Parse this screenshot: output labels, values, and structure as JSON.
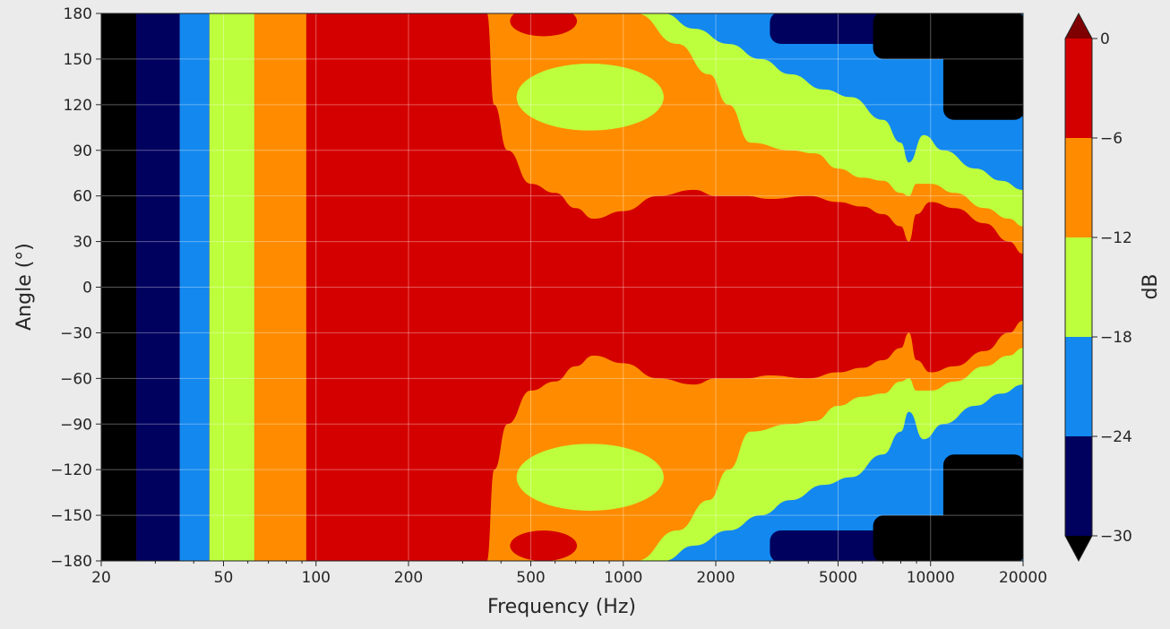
{
  "chart_data": {
    "type": "heatmap",
    "subtype": "filled-contour",
    "title": "",
    "xlabel": "Frequency (Hz)",
    "ylabel": "Angle (°)",
    "x_scale": "log",
    "xlim": [
      20,
      20000
    ],
    "ylim": [
      -180,
      180
    ],
    "x_ticks": [
      20,
      50,
      100,
      200,
      500,
      1000,
      2000,
      5000,
      10000,
      20000
    ],
    "y_ticks": [
      180,
      150,
      120,
      90,
      60,
      30,
      0,
      -30,
      -60,
      -90,
      -120,
      -150,
      -180
    ],
    "y_tick_labels": [
      "180",
      "150",
      "120",
      "90",
      "60",
      "30",
      "0",
      "−30",
      "−60",
      "−90",
      "−120",
      "−150",
      "−180"
    ],
    "grid": true,
    "colorbar": {
      "label": "dB",
      "levels": [
        -30,
        -24,
        -18,
        -12,
        -6,
        0
      ],
      "tick_labels": [
        "0",
        "−6",
        "−12",
        "−18",
        "−24",
        "−30"
      ],
      "extend": "both",
      "band_colors": [
        "#00005e",
        "#1388ef",
        "#bdff3d",
        "#ff8c00",
        "#d40000"
      ],
      "under_color": "#000000",
      "over_color": "#7f0000"
    },
    "low_frequency_bands": [
      {
        "from_hz": 20,
        "to_hz": 26,
        "level": "below -30 dB"
      },
      {
        "from_hz": 26,
        "to_hz": 36,
        "level": "-30 to -24 dB"
      },
      {
        "from_hz": 36,
        "to_hz": 45,
        "level": "-24 to -18 dB"
      },
      {
        "from_hz": 45,
        "to_hz": 63,
        "level": "-18 to -12 dB"
      },
      {
        "from_hz": 63,
        "to_hz": 93,
        "level": "-12 to -6 dB"
      },
      {
        "from_hz": 93,
        "to_hz": 20000,
        "level": "-6 to 0 dB (on-axis)"
      }
    ],
    "contour_boundaries": [
      {
        "level": "-6 dB",
        "points": [
          [
            360,
            180
          ],
          [
            380,
            120
          ],
          [
            420,
            90
          ],
          [
            500,
            68
          ],
          [
            600,
            62
          ],
          [
            700,
            52
          ],
          [
            800,
            45
          ],
          [
            1000,
            50
          ],
          [
            1300,
            60
          ],
          [
            1700,
            64
          ],
          [
            2000,
            60
          ],
          [
            2500,
            60
          ],
          [
            3000,
            58
          ],
          [
            4000,
            60
          ],
          [
            5000,
            56
          ],
          [
            6000,
            53
          ],
          [
            7000,
            48
          ],
          [
            8000,
            40
          ],
          [
            8500,
            30
          ],
          [
            9000,
            48
          ],
          [
            10000,
            56
          ],
          [
            12000,
            52
          ],
          [
            15000,
            42
          ],
          [
            18000,
            30
          ],
          [
            20000,
            22
          ]
        ]
      },
      {
        "level": "-12 dB",
        "points": [
          [
            1100,
            180
          ],
          [
            1500,
            160
          ],
          [
            1900,
            140
          ],
          [
            2200,
            120
          ],
          [
            2600,
            95
          ],
          [
            3500,
            90
          ],
          [
            4200,
            88
          ],
          [
            5000,
            78
          ],
          [
            6000,
            72
          ],
          [
            7000,
            70
          ],
          [
            8000,
            62
          ],
          [
            8500,
            60
          ],
          [
            9000,
            68
          ],
          [
            10000,
            68
          ],
          [
            12000,
            62
          ],
          [
            15000,
            52
          ],
          [
            18000,
            45
          ],
          [
            20000,
            40
          ]
        ]
      },
      {
        "level": "-18 dB",
        "points": [
          [
            1350,
            180
          ],
          [
            1700,
            170
          ],
          [
            2200,
            160
          ],
          [
            2800,
            150
          ],
          [
            3500,
            140
          ],
          [
            4500,
            130
          ],
          [
            5500,
            125
          ],
          [
            7000,
            110
          ],
          [
            8000,
            95
          ],
          [
            8500,
            82
          ],
          [
            9500,
            100
          ],
          [
            11000,
            90
          ],
          [
            14000,
            78
          ],
          [
            17000,
            70
          ],
          [
            20000,
            64
          ]
        ]
      }
    ],
    "islands": [
      {
        "level": "-18 to -12 dB",
        "center": [
          780,
          125
        ],
        "extent_deg": 22
      },
      {
        "level": "-18 to -12 dB",
        "center": [
          780,
          -125
        ],
        "extent_deg": 22
      },
      {
        "level": "-6 to 0 dB",
        "center": [
          550,
          175
        ],
        "extent_deg": 10
      },
      {
        "level": "-6 to 0 dB",
        "center": [
          550,
          -170
        ],
        "extent_deg": 10
      }
    ]
  }
}
